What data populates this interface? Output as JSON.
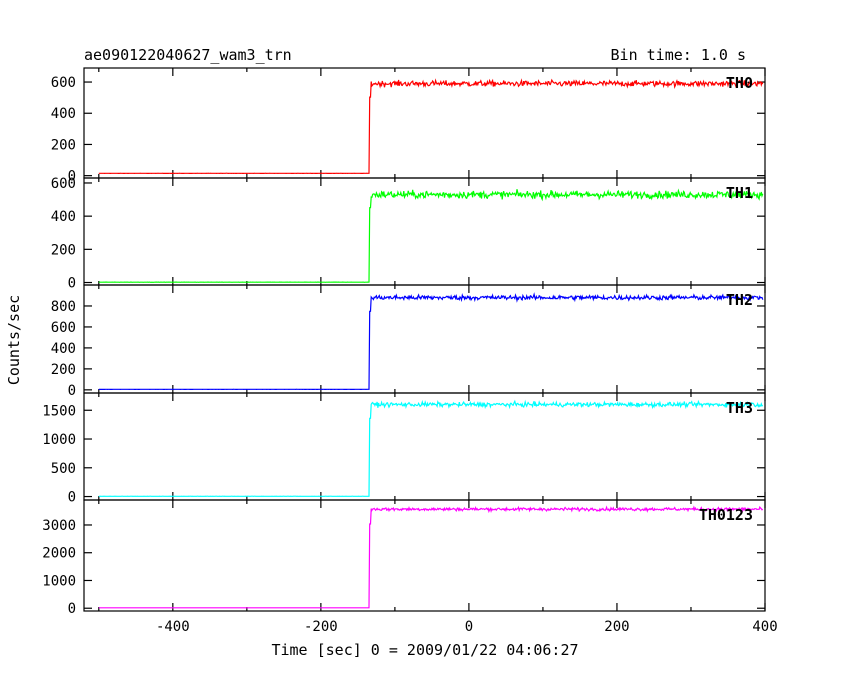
{
  "chart_data": {
    "type": "line",
    "title_left": "ae090122040627_wam3_trn",
    "title_right": "Bin time: 1.0 s",
    "xlabel": "Time [sec] 0 = 2009/01/22 04:06:27",
    "ylabel": "Counts/sec",
    "xlim": [
      -520,
      400
    ],
    "xticks": [
      -400,
      -200,
      0,
      200,
      400
    ],
    "onset_x": -134,
    "grid": false,
    "panels": [
      {
        "name": "TH0",
        "color": "#ff0000",
        "ylim": [
          -15,
          690
        ],
        "yticks": [
          0,
          200,
          400,
          600
        ],
        "pre_level": 15,
        "post_level": 590,
        "noise": 18
      },
      {
        "name": "TH1",
        "color": "#00ff00",
        "ylim": [
          -15,
          630
        ],
        "yticks": [
          0,
          200,
          400,
          600
        ],
        "pre_level": 2,
        "post_level": 530,
        "noise": 22
      },
      {
        "name": "TH2",
        "color": "#0000ff",
        "ylim": [
          -30,
          1000
        ],
        "yticks": [
          0,
          200,
          400,
          600,
          800
        ],
        "pre_level": 5,
        "post_level": 880,
        "noise": 22
      },
      {
        "name": "TH3",
        "color": "#00ffff",
        "ylim": [
          -60,
          1800
        ],
        "yticks": [
          0,
          500,
          1000,
          1500
        ],
        "pre_level": 5,
        "post_level": 1600,
        "noise": 38
      },
      {
        "name": "TH0123",
        "color": "#ff00ff",
        "ylim": [
          -100,
          3900
        ],
        "yticks": [
          0,
          1000,
          2000,
          3000
        ],
        "pre_level": 15,
        "post_level": 3570,
        "noise": 55
      }
    ]
  }
}
